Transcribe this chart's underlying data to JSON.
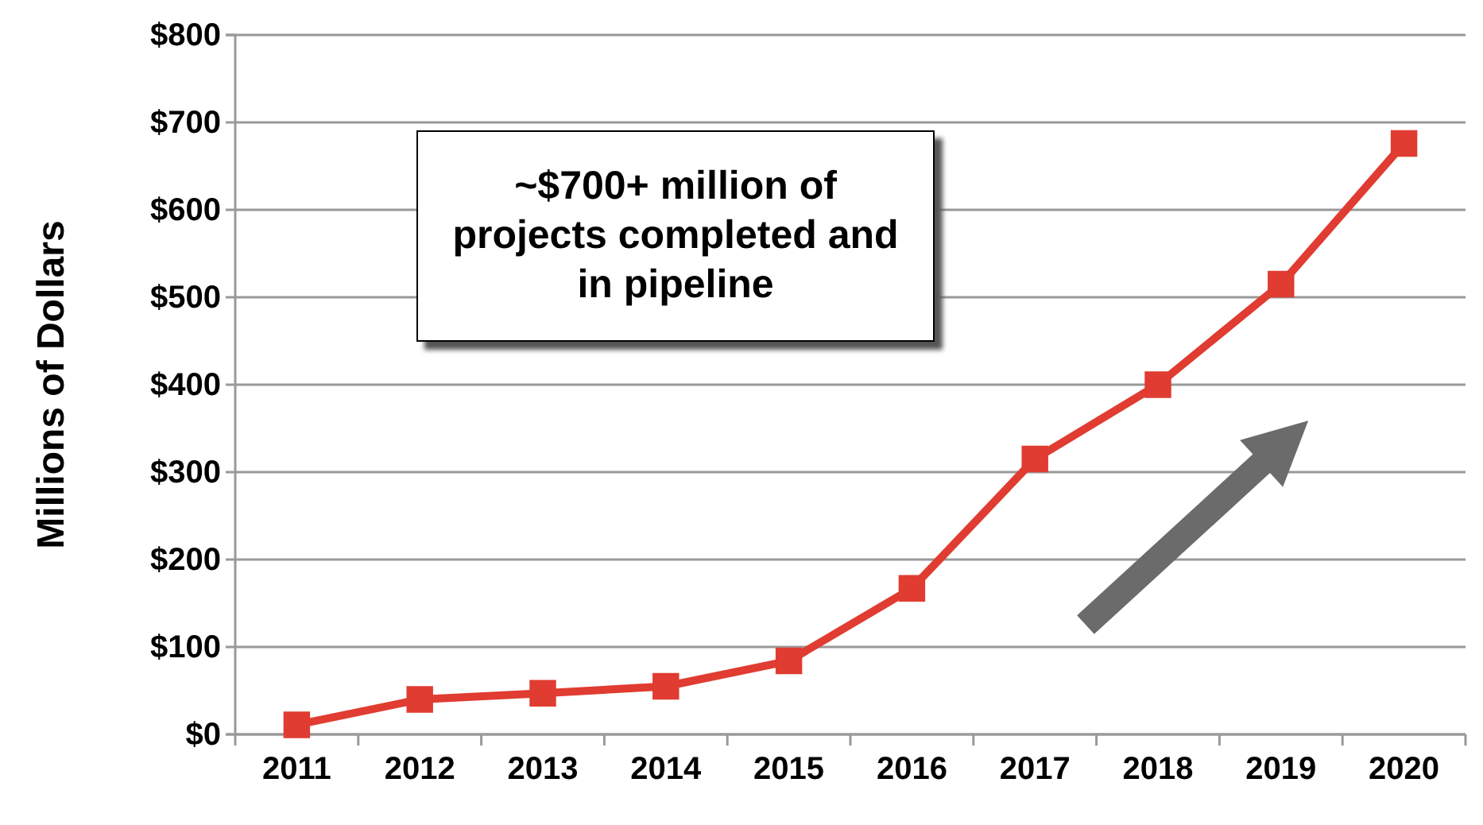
{
  "chart_data": {
    "type": "line",
    "ylabel": "Millions of Dollars",
    "categories": [
      "2011",
      "2012",
      "2013",
      "2014",
      "2015",
      "2016",
      "2017",
      "2018",
      "2019",
      "2020"
    ],
    "series": [
      {
        "color": "#e03c31",
        "values": [
          11,
          40,
          47,
          55,
          84,
          167,
          315,
          400,
          515,
          676
        ]
      }
    ],
    "ylim": [
      0,
      800
    ],
    "yticks": [
      {
        "value": 0,
        "label": "$0"
      },
      {
        "value": 100,
        "label": "$100"
      },
      {
        "value": 200,
        "label": "$200"
      },
      {
        "value": 300,
        "label": "$300"
      },
      {
        "value": 400,
        "label": "$400"
      },
      {
        "value": 500,
        "label": "$500"
      },
      {
        "value": 600,
        "label": "$600"
      },
      {
        "value": 700,
        "label": "$700"
      },
      {
        "value": 800,
        "label": "$800"
      }
    ],
    "grid": "y",
    "marker": "square",
    "line_style": "solid",
    "annotations": [
      "~$700+ million of projects completed and in pipeline"
    ]
  }
}
